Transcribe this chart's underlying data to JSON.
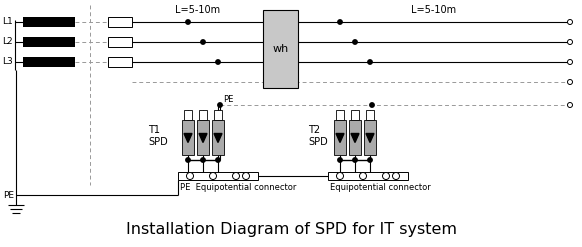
{
  "title": "Installation Diagram of SPD for IT system",
  "title_fontsize": 11.5,
  "bg_color": "#ffffff",
  "line_color": "#000000",
  "dashed_color": "#999999",
  "gray_fill": "#aaaaaa",
  "light_gray": "#c8c8c8",
  "L_labels": [
    "L1",
    "L2",
    "L3"
  ],
  "PE_label": "PE",
  "dist_label1": "L=5-10m",
  "dist_label2": "L=5-10m",
  "T1_label": "T1\nSPD",
  "T2_label": "T2\nSPD",
  "wh_label": "wh",
  "PE_eq_label1": "PE  Equipotential connector",
  "PE_eq_label2": "Equipotential connector"
}
